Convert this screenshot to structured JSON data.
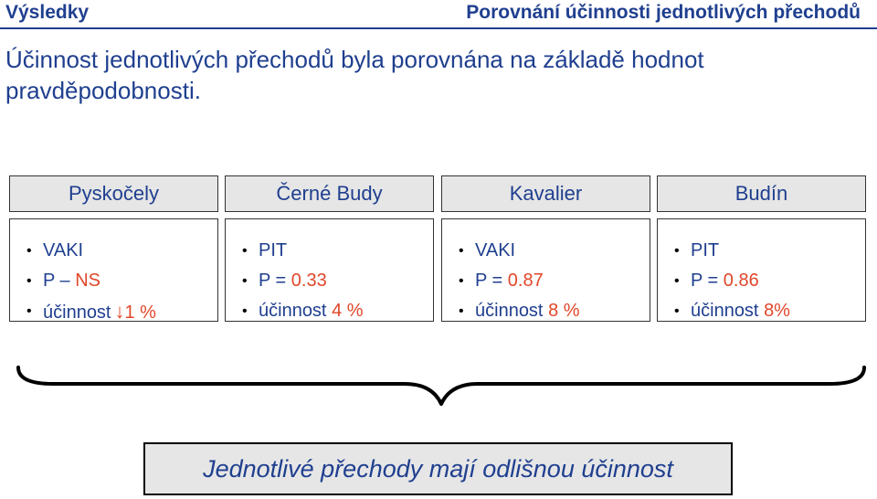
{
  "header": {
    "section": "Výsledky",
    "title": "Porovnání účinnosti jednotlivých přechodů"
  },
  "intro": "Účinnost jednotlivých přechodů byla porovnána na základě hodnot pravděpodobnosti.",
  "crossings": [
    {
      "name": "Pyskočely",
      "line1": "VAKI",
      "line2_prefix": "P – ",
      "line2_value": "NS",
      "line3_prefix": "účinnost",
      "line3_arrow": "↓",
      "line3_value": "1 %"
    },
    {
      "name": "Černé Budy",
      "line1": "PIT",
      "line2_prefix": "P = ",
      "line2_value": "0.33",
      "line3_prefix": "účinnost ",
      "line3_value": "4 %"
    },
    {
      "name": "Kavalier",
      "line1": "VAKI",
      "line2_prefix": "P = ",
      "line2_value": "0.87",
      "line3_prefix": "účinnost ",
      "line3_value": "8 %"
    },
    {
      "name": "Budín",
      "line1": "PIT",
      "line2_prefix": "P = ",
      "line2_value": "0.86",
      "line3_prefix": "účinnost ",
      "line3_value": "8%"
    }
  ],
  "conclusion": "Jednotlivé přechody mají odlišnou účinnost",
  "colors": {
    "text": "#1f3f8f",
    "accent": "#e0472a",
    "box_fill": "#e6e6e6"
  }
}
